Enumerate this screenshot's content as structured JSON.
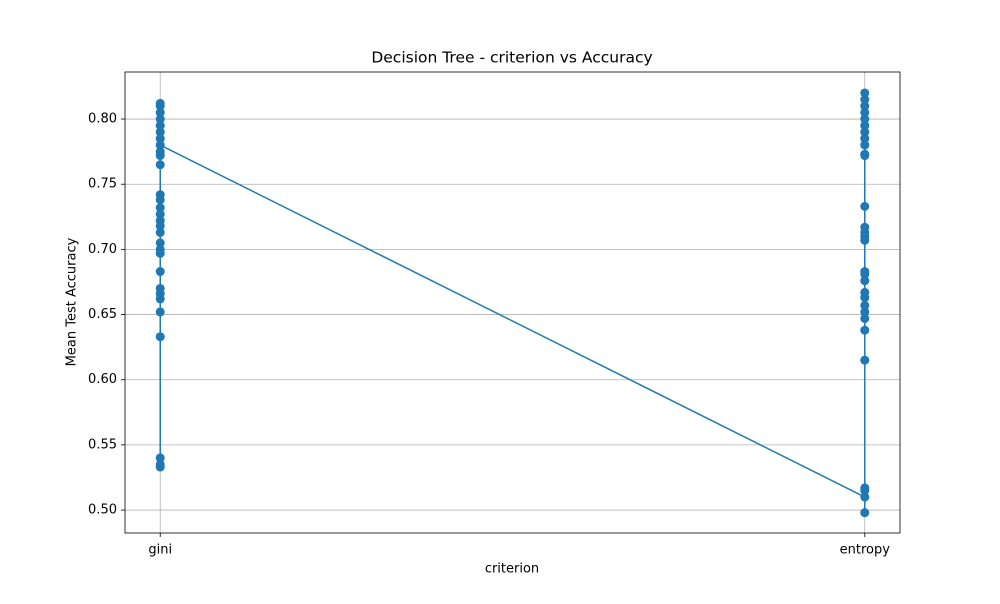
{
  "chart_data": {
    "type": "line",
    "title": "Decision Tree - criterion vs Accuracy",
    "x_label": "criterion",
    "y_label": "Mean Test Accuracy",
    "categories": [
      "gini",
      "entropy"
    ],
    "x": [
      "gini",
      "gini",
      "gini",
      "gini",
      "gini",
      "gini",
      "gini",
      "gini",
      "gini",
      "gini",
      "gini",
      "gini",
      "gini",
      "gini",
      "gini",
      "gini",
      "gini",
      "gini",
      "gini",
      "gini",
      "gini",
      "gini",
      "gini",
      "gini",
      "gini",
      "gini",
      "gini",
      "gini",
      "gini",
      "gini",
      "entropy",
      "entropy",
      "entropy",
      "entropy",
      "entropy",
      "entropy",
      "entropy",
      "entropy",
      "entropy",
      "entropy",
      "entropy",
      "entropy",
      "entropy",
      "entropy",
      "entropy",
      "entropy",
      "entropy",
      "entropy",
      "entropy",
      "entropy",
      "entropy",
      "entropy",
      "entropy",
      "entropy",
      "entropy",
      "entropy",
      "entropy",
      "entropy",
      "entropy",
      "entropy"
    ],
    "values": [
      0.812,
      0.81,
      0.805,
      0.8,
      0.795,
      0.79,
      0.785,
      0.775,
      0.772,
      0.765,
      0.742,
      0.738,
      0.732,
      0.727,
      0.722,
      0.718,
      0.713,
      0.705,
      0.7,
      0.697,
      0.683,
      0.67,
      0.666,
      0.662,
      0.652,
      0.633,
      0.54,
      0.535,
      0.533,
      0.78,
      0.51,
      0.82,
      0.815,
      0.81,
      0.805,
      0.8,
      0.795,
      0.79,
      0.785,
      0.78,
      0.773,
      0.772,
      0.733,
      0.717,
      0.713,
      0.71,
      0.707,
      0.683,
      0.681,
      0.676,
      0.667,
      0.663,
      0.657,
      0.652,
      0.647,
      0.638,
      0.615,
      0.517,
      0.515,
      0.498
    ],
    "color": "#1f77b4",
    "xlim": [
      -0.05,
      1.05
    ],
    "ylim": [
      0.4824,
      0.8361
    ],
    "yticks": [
      {
        "value": 0.5,
        "label": "0.50"
      },
      {
        "value": 0.55,
        "label": "0.55"
      },
      {
        "value": 0.6,
        "label": "0.60"
      },
      {
        "value": 0.65,
        "label": "0.65"
      },
      {
        "value": 0.7,
        "label": "0.70"
      },
      {
        "value": 0.75,
        "label": "0.75"
      },
      {
        "value": 0.8,
        "label": "0.80"
      }
    ],
    "grid": true
  }
}
